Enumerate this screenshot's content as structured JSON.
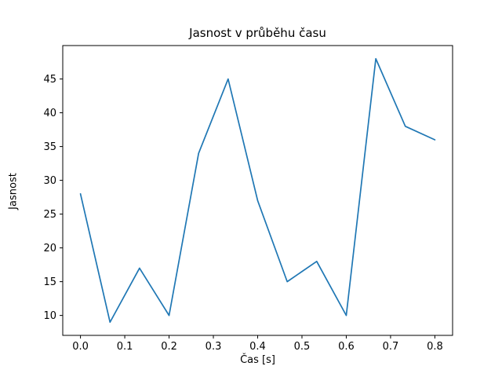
{
  "chart_data": {
    "type": "line",
    "title": "Jasnost v průběhu času",
    "xlabel": "Čas [s]",
    "ylabel": "Jasnost",
    "x": [
      0.0,
      0.0667,
      0.1333,
      0.2,
      0.2667,
      0.3333,
      0.4,
      0.4667,
      0.5333,
      0.6,
      0.6667,
      0.7333,
      0.8
    ],
    "values": [
      28,
      9,
      17,
      10,
      34,
      45,
      27,
      15,
      18,
      10,
      48,
      38,
      36
    ],
    "xticks": [
      0.0,
      0.1,
      0.2,
      0.3,
      0.4,
      0.5,
      0.6,
      0.7,
      0.8
    ],
    "yticks": [
      10,
      15,
      20,
      25,
      30,
      35,
      40,
      45
    ],
    "xlim": [
      -0.04,
      0.84
    ],
    "ylim": [
      7.05,
      49.95
    ],
    "line_color": "#1f77b4",
    "frame_color": "#000000",
    "background_color": "#ffffff",
    "grid": false,
    "legend": "none"
  }
}
